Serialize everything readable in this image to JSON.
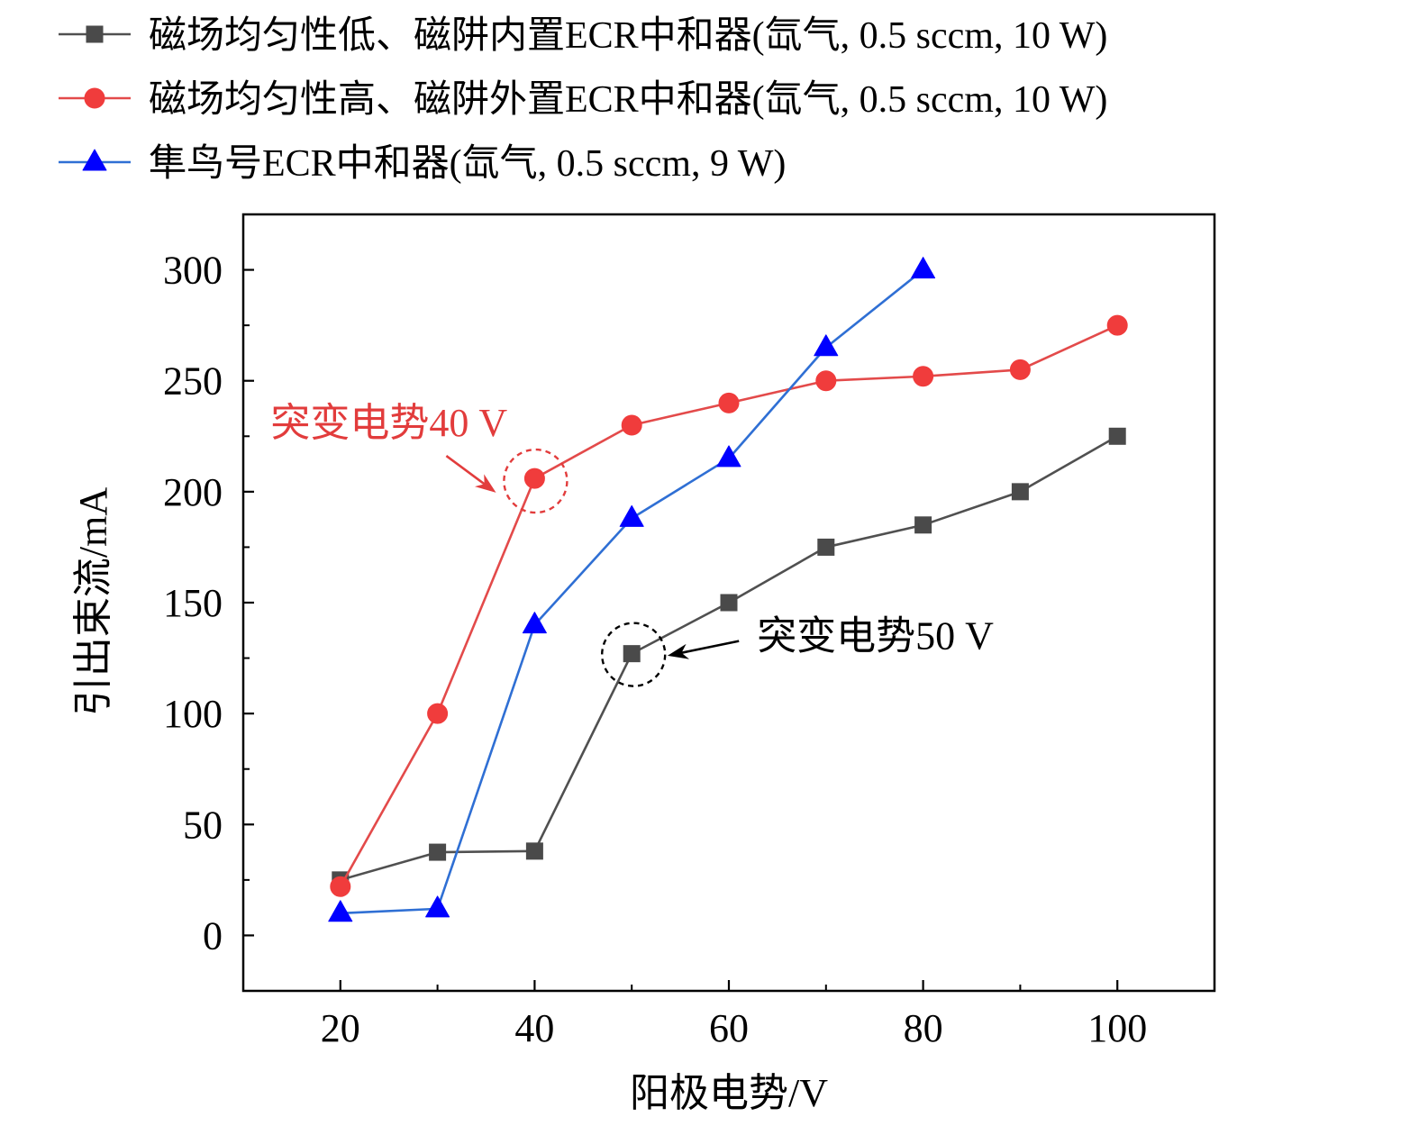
{
  "chart_data": {
    "type": "line",
    "xlabel": "阳极电势/V",
    "ylabel": "引出束流/mA",
    "xlim": [
      10,
      110
    ],
    "ylim": [
      -25,
      325
    ],
    "xticks": [
      20,
      40,
      60,
      80,
      100
    ],
    "xticks_minor": [
      30,
      50,
      70,
      90
    ],
    "yticks": [
      0,
      50,
      100,
      150,
      200,
      250,
      300
    ],
    "yticks_minor": [
      25,
      75,
      125,
      175,
      225,
      275
    ],
    "grid": false,
    "legend_position": "top",
    "series": [
      {
        "name": "磁场均匀性低、磁阱内置ECR中和器(氙气, 0.5 sccm, 10 W)",
        "marker": "square",
        "line_color": "#505050",
        "marker_color": "#4a4a4a",
        "x": [
          20,
          30,
          40,
          50,
          60,
          70,
          80,
          90,
          100
        ],
        "y": [
          25,
          37.5,
          38,
          127,
          150,
          175,
          185,
          200,
          225
        ]
      },
      {
        "name": "磁场均匀性高、磁阱外置ECR中和器(氙气, 0.5 sccm, 10 W)",
        "marker": "circle",
        "line_color": "#e34a4a",
        "marker_color": "#f03c3c",
        "x": [
          20,
          30,
          40,
          50,
          60,
          70,
          80,
          90,
          100
        ],
        "y": [
          22,
          100,
          206,
          230,
          240,
          250,
          252,
          255,
          275
        ]
      },
      {
        "name": "隼鸟号ECR中和器(氙气, 0.5 sccm, 9 W)",
        "marker": "triangle",
        "line_color": "#2f6fd4",
        "marker_color": "#0000ff",
        "x": [
          20,
          30,
          40,
          50,
          60,
          70,
          80
        ],
        "y": [
          10,
          12,
          140,
          188,
          215,
          265,
          300
        ]
      }
    ],
    "annotations": [
      {
        "text": "突变电势40 V",
        "color": "#e23c3c",
        "series": 1,
        "x": 40
      },
      {
        "text": "突变电势50 V",
        "color": "#000000",
        "series": 0,
        "x": 50
      }
    ]
  }
}
